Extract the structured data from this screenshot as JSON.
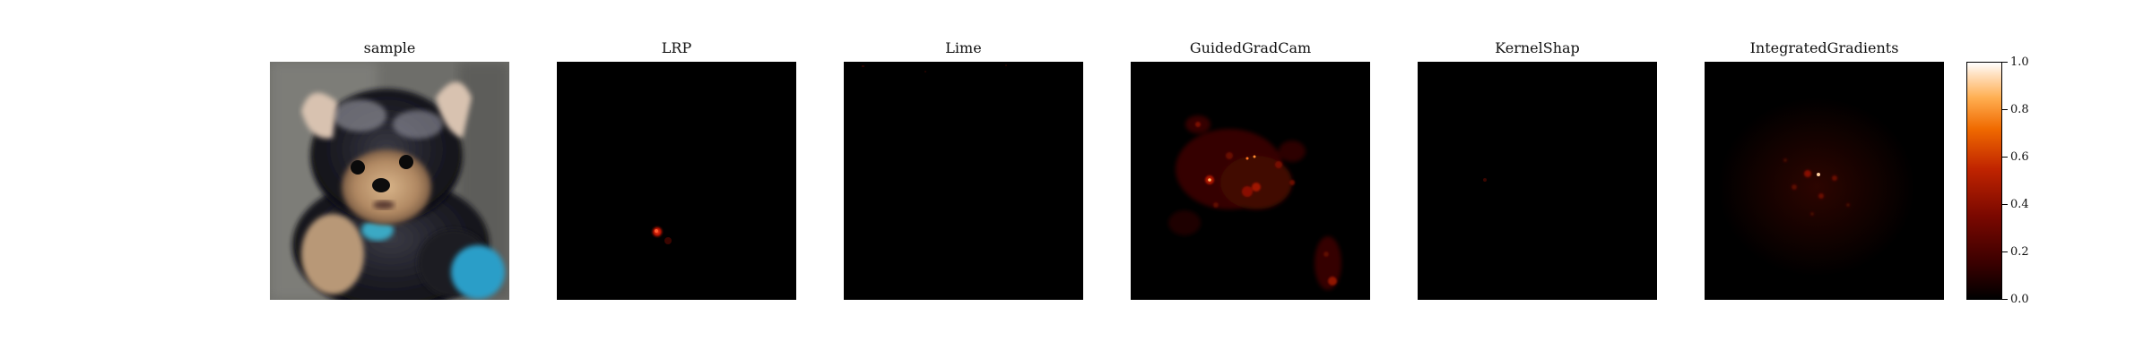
{
  "panels": [
    {
      "title": "sample",
      "image": "sample-photo"
    },
    {
      "title": "LRP",
      "image": "lrp-heatmap"
    },
    {
      "title": "Lime",
      "image": "lime-heatmap"
    },
    {
      "title": "GuidedGradCam",
      "image": "guidedgradcam-heatmap"
    },
    {
      "title": "KernelShap",
      "image": "kernelshap-heatmap"
    },
    {
      "title": "IntegratedGradients",
      "image": "integratedgradients-heatmap"
    }
  ],
  "colorbar": {
    "colormap": "gist_heat",
    "range": [
      0.0,
      1.0
    ],
    "ticks": [
      "1.0",
      "0.8",
      "0.6",
      "0.4",
      "0.2",
      "0.0"
    ],
    "tick_values": [
      1.0,
      0.8,
      0.6,
      0.4,
      0.2,
      0.0
    ]
  },
  "colors": {
    "heatmap_background": "#000000",
    "heat_low": "#5a0000",
    "heat_mid": "#d81a00",
    "heat_high": "#ffffff"
  }
}
